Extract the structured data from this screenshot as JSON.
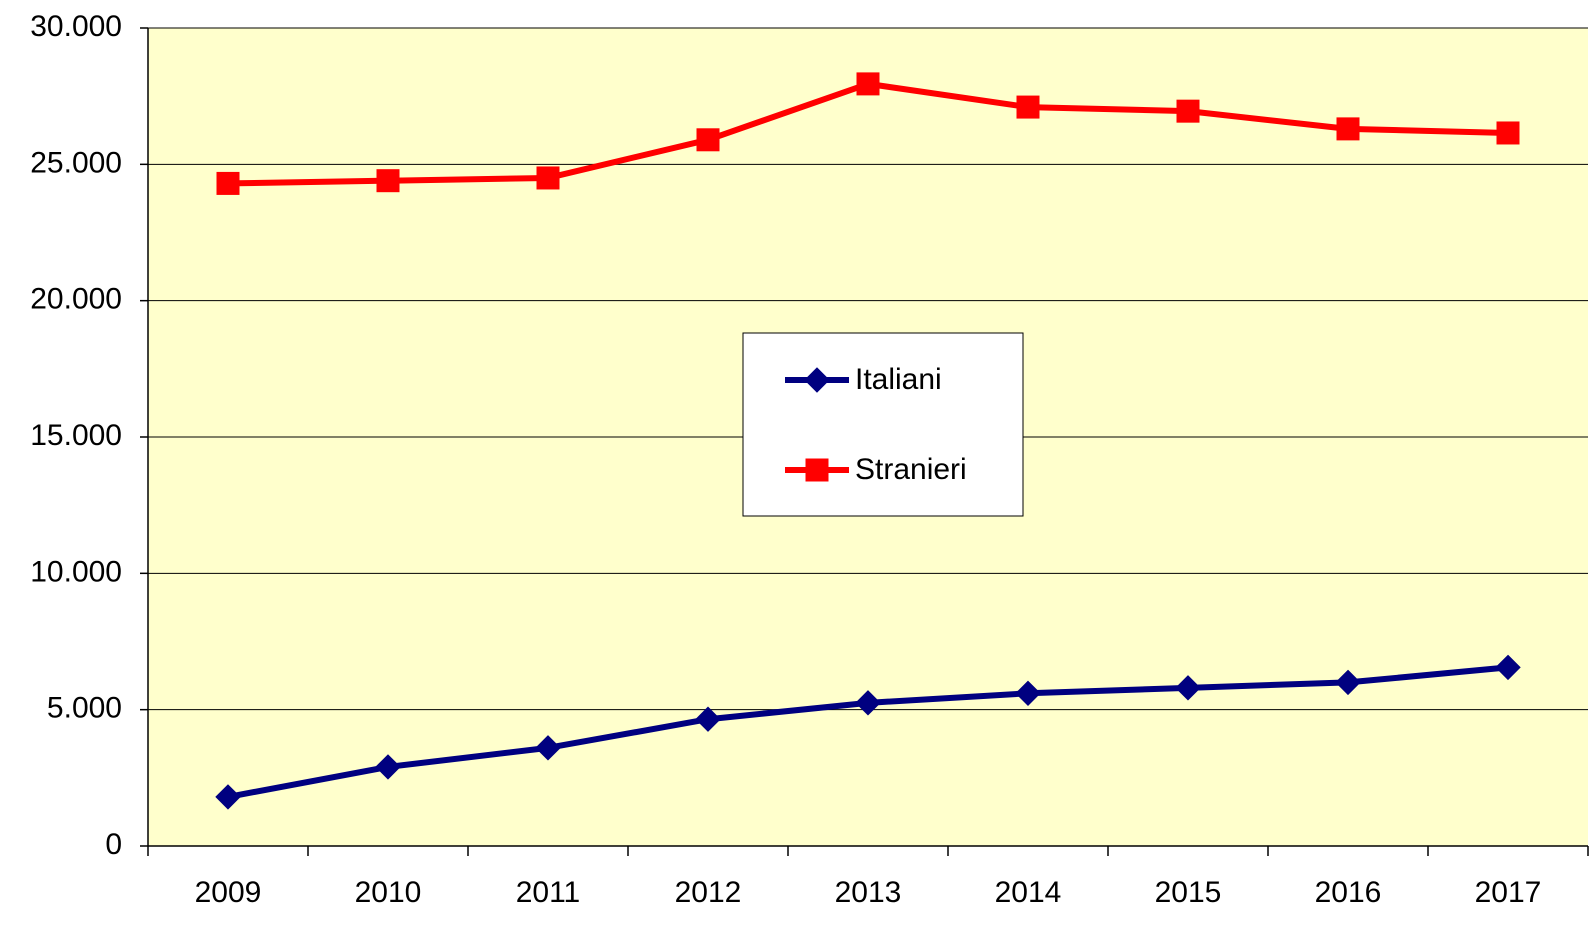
{
  "chart_data": {
    "type": "line",
    "categories": [
      "2009",
      "2010",
      "2011",
      "2012",
      "2013",
      "2014",
      "2015",
      "2016",
      "2017"
    ],
    "series": [
      {
        "name": "Italiani",
        "color": "#000080",
        "marker": "diamond",
        "values": [
          1800,
          2900,
          3600,
          4650,
          5250,
          5600,
          5800,
          6000,
          6550
        ]
      },
      {
        "name": "Stranieri",
        "color": "#ff0000",
        "marker": "square",
        "values": [
          24300,
          24400,
          24500,
          25900,
          27950,
          27100,
          26950,
          26300,
          26150
        ]
      }
    ],
    "ylim": [
      0,
      30000
    ],
    "yticks": [
      0,
      {
        "value": 5000,
        "label": "5.000"
      },
      {
        "value": 10000,
        "label": "10.000"
      },
      {
        "value": 15000,
        "label": "15.000"
      },
      {
        "value": 20000,
        "label": "20.000"
      },
      {
        "value": 25000,
        "label": "25.000"
      },
      {
        "value": 30000,
        "label": "30.000"
      }
    ],
    "grid": true,
    "plot_background": "#ffffcc",
    "legend": "center"
  }
}
